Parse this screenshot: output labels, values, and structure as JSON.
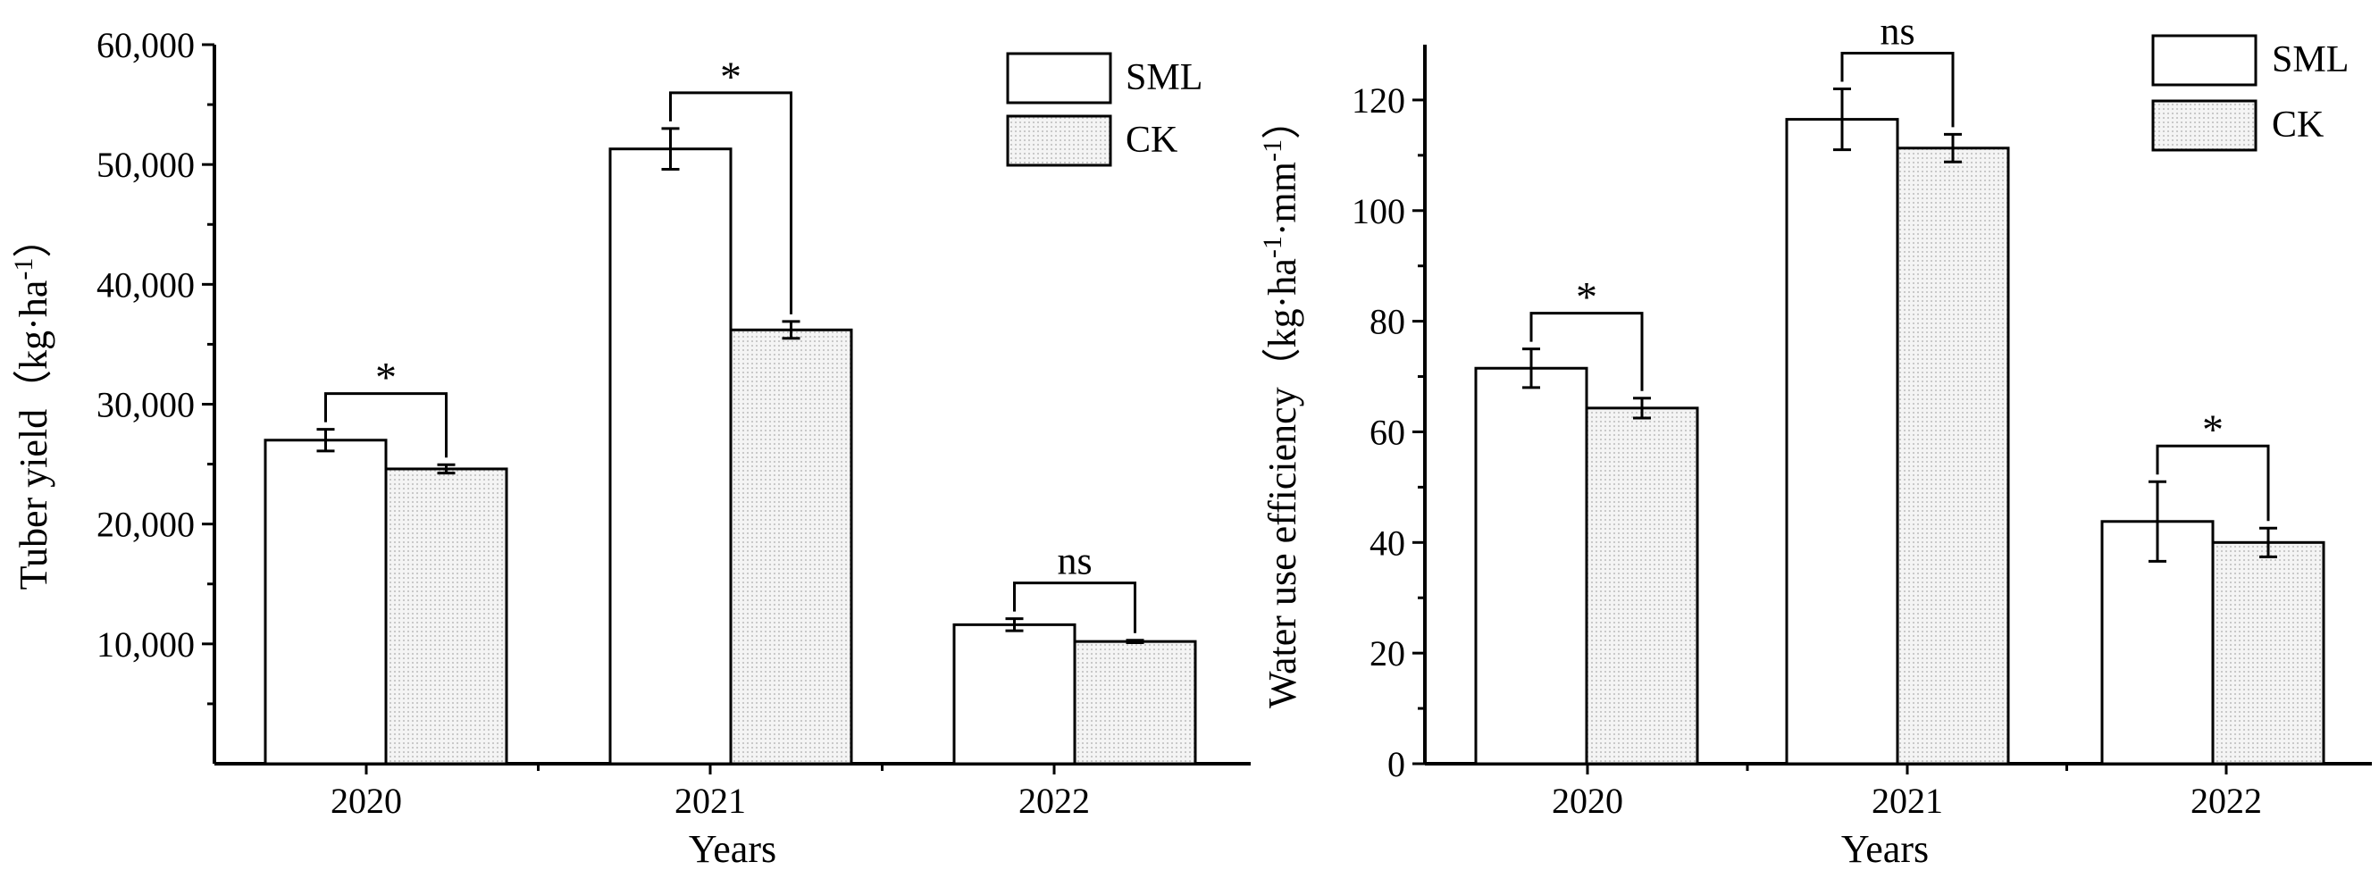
{
  "chart_data": [
    {
      "type": "bar",
      "xlabel": "Years",
      "ylabel_main": "Tuber yield（kg·ha",
      "ylabel_sup": "-1",
      "ylabel_tail": "）",
      "ylim": [
        0,
        60000
      ],
      "yticks": [
        10000,
        20000,
        30000,
        40000,
        50000,
        60000
      ],
      "ytick_labels": [
        "10,000",
        "20,000",
        "30,000",
        "40,000",
        "50,000",
        "60,000"
      ],
      "categories": [
        "2020",
        "2021",
        "2022"
      ],
      "series": [
        {
          "name": "SML",
          "values": [
            27000,
            51300,
            11600
          ],
          "errors": [
            900,
            1700,
            500
          ]
        },
        {
          "name": "CK",
          "values": [
            24600,
            36200,
            10200
          ],
          "errors": [
            350,
            700,
            100
          ]
        }
      ],
      "significance": [
        "*",
        "*",
        "ns"
      ],
      "legend_position": "top-right"
    },
    {
      "type": "bar",
      "xlabel": "Years",
      "ylabel_main": "Water use efficiency（kg·ha",
      "ylabel_sup": "-1",
      "ylabel_mid": "·mm",
      "ylabel_sup2": "-1",
      "ylabel_tail": "）",
      "ylim": [
        0,
        130
      ],
      "yticks": [
        0,
        20,
        40,
        60,
        80,
        100,
        120
      ],
      "ytick_labels": [
        "0",
        "20",
        "40",
        "60",
        "80",
        "100",
        "120"
      ],
      "categories": [
        "2020",
        "2021",
        "2022"
      ],
      "series": [
        {
          "name": "SML",
          "values": [
            71.5,
            116.5,
            43.8
          ],
          "errors": [
            3.5,
            5.5,
            7.2
          ]
        },
        {
          "name": "CK",
          "values": [
            64.3,
            111.3,
            40.0
          ],
          "errors": [
            1.8,
            2.5,
            2.6
          ]
        }
      ],
      "significance": [
        "*",
        "ns",
        "*"
      ],
      "legend_position": "top-right"
    }
  ]
}
